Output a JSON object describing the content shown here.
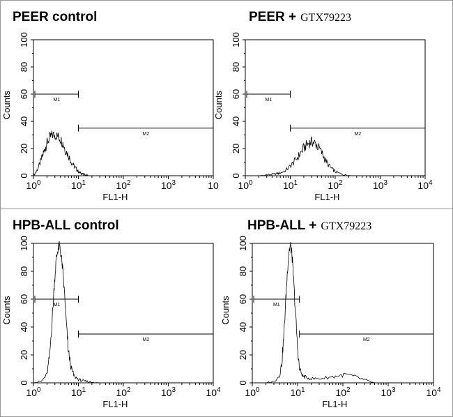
{
  "figure": {
    "panel_titles": [
      {
        "main": "PEER control",
        "reagent": ""
      },
      {
        "main": "PEER +",
        "reagent": "GTX79223"
      },
      {
        "main": "HPB-ALL control",
        "reagent": ""
      },
      {
        "main": "HPB-ALL +",
        "reagent": "GTX79223"
      }
    ]
  },
  "chart_data": [
    {
      "type": "line",
      "title": "PEER control",
      "xlabel": "FL1-H",
      "ylabel": "Counts",
      "x_scale": "log",
      "xlim": [
        1,
        10000
      ],
      "ylim": [
        0,
        100
      ],
      "y_ticks": [
        0,
        20,
        40,
        60,
        80,
        100
      ],
      "x_tick_labels": [
        {
          "base": "10",
          "exp": "0"
        },
        {
          "base": "10",
          "exp": "1"
        },
        {
          "base": "10",
          "exp": "2"
        },
        {
          "base": "10",
          "exp": "3"
        },
        {
          "base": "10",
          "exp": ""
        }
      ],
      "grid": false,
      "markers": [
        {
          "name": "M1",
          "x_range": [
            1,
            10
          ],
          "y": 60
        },
        {
          "name": "M2",
          "x_range": [
            10,
            10000
          ],
          "y": 35
        }
      ],
      "series": [
        {
          "x": [
            1,
            1.2,
            1.4,
            1.6,
            1.8,
            2,
            2.3,
            2.6,
            3,
            3.5,
            4,
            4.5,
            5,
            6,
            7,
            8,
            9,
            10,
            11,
            12,
            13,
            15,
            17
          ],
          "y": [
            0,
            4,
            9,
            15,
            20,
            24,
            28,
            30,
            30,
            29,
            27,
            24,
            20,
            15,
            10,
            7,
            5,
            3,
            2,
            1.5,
            1,
            0.5,
            0
          ]
        }
      ]
    },
    {
      "type": "line",
      "title": "PEER + GTX79223",
      "xlabel": "FL1-H",
      "ylabel": "Counts",
      "x_scale": "log",
      "xlim": [
        1,
        10000
      ],
      "ylim": [
        0,
        100
      ],
      "y_ticks": [
        0,
        20,
        40,
        60,
        80,
        100
      ],
      "x_tick_labels": [
        {
          "base": "10",
          "exp": "0"
        },
        {
          "base": "10",
          "exp": "1"
        },
        {
          "base": "10",
          "exp": "2"
        },
        {
          "base": "10",
          "exp": "3"
        },
        {
          "base": "10",
          "exp": "4"
        }
      ],
      "grid": false,
      "markers": [
        {
          "name": "M1",
          "x_range": [
            1,
            10
          ],
          "y": 60
        },
        {
          "name": "M2",
          "x_range": [
            10,
            10000
          ],
          "y": 35
        }
      ],
      "series": [
        {
          "x": [
            1,
            2,
            3,
            4,
            5,
            6,
            8,
            10,
            12,
            15,
            18,
            22,
            26,
            30,
            35,
            40,
            50,
            60,
            70,
            85,
            100,
            130,
            170,
            230
          ],
          "y": [
            0,
            0,
            0.5,
            1,
            1.5,
            2,
            4,
            7,
            10,
            14,
            18,
            22,
            24,
            25,
            24,
            22,
            17,
            12,
            8,
            5,
            3,
            1.5,
            0.5,
            0
          ]
        }
      ]
    },
    {
      "type": "line",
      "title": "HPB-ALL control",
      "xlabel": "FL1-H",
      "ylabel": "Counts",
      "x_scale": "log",
      "xlim": [
        1,
        10000
      ],
      "ylim": [
        0,
        100
      ],
      "y_ticks": [
        0,
        20,
        40,
        60,
        80,
        100
      ],
      "x_tick_labels": [
        {
          "base": "10",
          "exp": "0"
        },
        {
          "base": "10",
          "exp": "1"
        },
        {
          "base": "10",
          "exp": "2"
        },
        {
          "base": "10",
          "exp": "3"
        },
        {
          "base": "10",
          "exp": "4"
        }
      ],
      "grid": false,
      "markers": [
        {
          "name": "M1",
          "x_range": [
            1,
            10
          ],
          "y": 60
        },
        {
          "name": "M2",
          "x_range": [
            10,
            10000
          ],
          "y": 35
        }
      ],
      "series": [
        {
          "x": [
            1,
            1.5,
            2,
            2.3,
            2.6,
            2.9,
            3.2,
            3.5,
            3.8,
            4.1,
            4.5,
            5,
            5.5,
            6,
            7,
            8,
            10,
            12,
            15,
            20,
            30
          ],
          "y": [
            0,
            1,
            6,
            20,
            45,
            70,
            88,
            96,
            98,
            92,
            80,
            60,
            38,
            22,
            10,
            5,
            2.5,
            1.5,
            1,
            0.5,
            0
          ]
        }
      ]
    },
    {
      "type": "line",
      "title": "HPB-ALL + GTX79223",
      "xlabel": "FL1-H",
      "ylabel": "Counts",
      "x_scale": "log",
      "xlim": [
        1,
        10000
      ],
      "ylim": [
        0,
        100
      ],
      "y_ticks": [
        0,
        20,
        40,
        60,
        80,
        100
      ],
      "x_tick_labels": [
        {
          "base": "10",
          "exp": "0"
        },
        {
          "base": "10",
          "exp": "1"
        },
        {
          "base": "10",
          "exp": "2"
        },
        {
          "base": "10",
          "exp": "3"
        },
        {
          "base": "10",
          "exp": "4"
        }
      ],
      "grid": false,
      "markers": [
        {
          "name": "M1",
          "x_range": [
            1,
            11
          ],
          "y": 60
        },
        {
          "name": "M2",
          "x_range": [
            11,
            10000
          ],
          "y": 35
        }
      ],
      "series": [
        {
          "x": [
            1,
            2,
            3,
            4,
            4.5,
            5,
            5.5,
            6,
            6.5,
            7,
            7.5,
            8,
            9,
            10,
            11,
            13,
            15,
            20,
            30,
            50,
            80,
            120,
            200,
            300,
            500
          ],
          "y": [
            0,
            0,
            1,
            5,
            15,
            35,
            60,
            82,
            95,
            98,
            92,
            78,
            50,
            25,
            10,
            5,
            4,
            3,
            3,
            4,
            5,
            6,
            4,
            2,
            0
          ]
        }
      ]
    }
  ]
}
